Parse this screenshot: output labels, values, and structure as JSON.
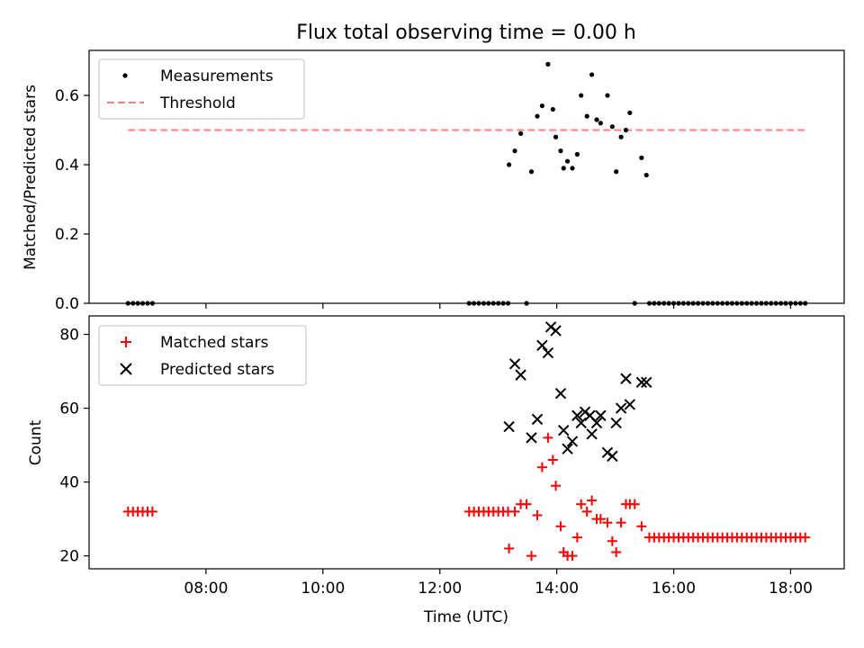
{
  "chart_data": [
    {
      "type": "scatter",
      "title": "Flux total observing time = 0.00 h",
      "xlabel": "",
      "ylabel": "Matched/Predicted stars",
      "x_unit": "hours UTC",
      "xlim": [
        "06:00",
        "18:55"
      ],
      "ylim": [
        0,
        0.73
      ],
      "yticks": [
        0.0,
        0.2,
        0.4,
        0.6
      ],
      "ytick_labels": [
        "0.0",
        "0.2",
        "0.4",
        "0.6"
      ],
      "xticks": [
        "08:00",
        "10:00",
        "12:00",
        "14:00",
        "16:00",
        "18:00"
      ],
      "show_xtick_labels": false,
      "grid": false,
      "legend": {
        "placement": "top-left",
        "entries": [
          {
            "label": "Measurements",
            "marker": "dot",
            "color": "#000000"
          },
          {
            "label": "Threshold",
            "marker": "dashed-line",
            "color": "#ff7f7f"
          }
        ]
      },
      "threshold": {
        "name": "Threshold",
        "value": 0.5,
        "x_start": "06:40",
        "x_end": "18:15",
        "color": "#ff7f7f"
      },
      "series": [
        {
          "name": "Measurements",
          "color": "#000000",
          "points": [
            [
              "06:40",
              0
            ],
            [
              "06:45",
              0
            ],
            [
              "06:50",
              0
            ],
            [
              "06:55",
              0
            ],
            [
              "07:00",
              0
            ],
            [
              "07:05",
              0
            ],
            [
              "12:30",
              0
            ],
            [
              "12:35",
              0
            ],
            [
              "12:40",
              0
            ],
            [
              "12:45",
              0
            ],
            [
              "12:50",
              0
            ],
            [
              "12:55",
              0
            ],
            [
              "13:00",
              0
            ],
            [
              "13:05",
              0
            ],
            [
              "13:10",
              0
            ],
            [
              "13:11",
              0.4
            ],
            [
              "13:17",
              0.44
            ],
            [
              "13:23",
              0.49
            ],
            [
              "13:29",
              0
            ],
            [
              "13:34",
              0.38
            ],
            [
              "13:40",
              0.54
            ],
            [
              "13:45",
              0.57
            ],
            [
              "13:51",
              0.69
            ],
            [
              "13:56",
              0.56
            ],
            [
              "13:59",
              0.48
            ],
            [
              "14:04",
              0.44
            ],
            [
              "14:07",
              0.39
            ],
            [
              "14:11",
              0.41
            ],
            [
              "14:16",
              0.39
            ],
            [
              "14:21",
              0.43
            ],
            [
              "14:25",
              0.6
            ],
            [
              "14:31",
              0.54
            ],
            [
              "14:36",
              0.66
            ],
            [
              "14:41",
              0.53
            ],
            [
              "14:45",
              0.52
            ],
            [
              "14:52",
              0.6
            ],
            [
              "14:57",
              0.51
            ],
            [
              "15:01",
              0.38
            ],
            [
              "15:06",
              0.48
            ],
            [
              "15:11",
              0.5
            ],
            [
              "15:15",
              0.55
            ],
            [
              "15:20",
              0
            ],
            [
              "15:27",
              0.42
            ],
            [
              "15:32",
              0.37
            ],
            [
              "15:35",
              0
            ],
            [
              "15:40",
              0
            ],
            [
              "15:45",
              0
            ],
            [
              "15:50",
              0
            ],
            [
              "15:55",
              0
            ],
            [
              "16:00",
              0
            ],
            [
              "16:05",
              0
            ],
            [
              "16:10",
              0
            ],
            [
              "16:15",
              0
            ],
            [
              "16:20",
              0
            ],
            [
              "16:25",
              0
            ],
            [
              "16:30",
              0
            ],
            [
              "16:35",
              0
            ],
            [
              "16:40",
              0
            ],
            [
              "16:45",
              0
            ],
            [
              "16:50",
              0
            ],
            [
              "16:55",
              0
            ],
            [
              "17:00",
              0
            ],
            [
              "17:05",
              0
            ],
            [
              "17:10",
              0
            ],
            [
              "17:15",
              0
            ],
            [
              "17:20",
              0
            ],
            [
              "17:25",
              0
            ],
            [
              "17:30",
              0
            ],
            [
              "17:35",
              0
            ],
            [
              "17:40",
              0
            ],
            [
              "17:45",
              0
            ],
            [
              "17:50",
              0
            ],
            [
              "17:55",
              0
            ],
            [
              "18:00",
              0
            ],
            [
              "18:05",
              0
            ],
            [
              "18:10",
              0
            ],
            [
              "18:15",
              0
            ]
          ]
        }
      ]
    },
    {
      "type": "scatter",
      "title": "",
      "xlabel": "Time (UTC)",
      "ylabel": "Count",
      "x_unit": "hours UTC",
      "xlim": [
        "06:00",
        "18:55"
      ],
      "ylim": [
        16.5,
        85
      ],
      "yticks": [
        20,
        40,
        60,
        80
      ],
      "ytick_labels": [
        "20",
        "40",
        "60",
        "80"
      ],
      "xticks": [
        "08:00",
        "10:00",
        "12:00",
        "14:00",
        "16:00",
        "18:00"
      ],
      "xtick_labels": [
        "08:00",
        "10:00",
        "12:00",
        "14:00",
        "16:00",
        "18:00"
      ],
      "grid": false,
      "legend": {
        "placement": "top-left",
        "entries": [
          {
            "label": "Matched stars",
            "marker": "plus",
            "color": "#ff0000"
          },
          {
            "label": "Predicted stars",
            "marker": "x",
            "color": "#000000"
          }
        ]
      },
      "series": [
        {
          "name": "Matched stars",
          "color": "#ff0000",
          "marker": "plus",
          "points": [
            [
              "06:40",
              32
            ],
            [
              "06:45",
              32
            ],
            [
              "06:50",
              32
            ],
            [
              "06:55",
              32
            ],
            [
              "07:00",
              32
            ],
            [
              "07:05",
              32
            ],
            [
              "12:30",
              32
            ],
            [
              "12:35",
              32
            ],
            [
              "12:40",
              32
            ],
            [
              "12:45",
              32
            ],
            [
              "12:50",
              32
            ],
            [
              "12:55",
              32
            ],
            [
              "13:00",
              32
            ],
            [
              "13:05",
              32
            ],
            [
              "13:10",
              32
            ],
            [
              "13:11",
              22
            ],
            [
              "13:17",
              32
            ],
            [
              "13:23",
              34
            ],
            [
              "13:29",
              34
            ],
            [
              "13:34",
              20
            ],
            [
              "13:40",
              31
            ],
            [
              "13:45",
              44
            ],
            [
              "13:51",
              52
            ],
            [
              "13:56",
              46
            ],
            [
              "13:59",
              39
            ],
            [
              "14:04",
              28
            ],
            [
              "14:07",
              21
            ],
            [
              "14:11",
              20
            ],
            [
              "14:16",
              20
            ],
            [
              "14:21",
              25
            ],
            [
              "14:25",
              34
            ],
            [
              "14:31",
              32
            ],
            [
              "14:36",
              35
            ],
            [
              "14:41",
              30
            ],
            [
              "14:45",
              30
            ],
            [
              "14:52",
              29
            ],
            [
              "14:57",
              24
            ],
            [
              "15:01",
              21
            ],
            [
              "15:06",
              29
            ],
            [
              "15:11",
              34
            ],
            [
              "15:15",
              34
            ],
            [
              "15:20",
              34
            ],
            [
              "15:27",
              28
            ],
            [
              "15:35",
              25
            ],
            [
              "15:40",
              25
            ],
            [
              "15:45",
              25
            ],
            [
              "15:50",
              25
            ],
            [
              "15:55",
              25
            ],
            [
              "16:00",
              25
            ],
            [
              "16:05",
              25
            ],
            [
              "16:10",
              25
            ],
            [
              "16:15",
              25
            ],
            [
              "16:20",
              25
            ],
            [
              "16:25",
              25
            ],
            [
              "16:30",
              25
            ],
            [
              "16:35",
              25
            ],
            [
              "16:40",
              25
            ],
            [
              "16:45",
              25
            ],
            [
              "16:50",
              25
            ],
            [
              "16:55",
              25
            ],
            [
              "17:00",
              25
            ],
            [
              "17:05",
              25
            ],
            [
              "17:10",
              25
            ],
            [
              "17:15",
              25
            ],
            [
              "17:20",
              25
            ],
            [
              "17:25",
              25
            ],
            [
              "17:30",
              25
            ],
            [
              "17:35",
              25
            ],
            [
              "17:40",
              25
            ],
            [
              "17:45",
              25
            ],
            [
              "17:50",
              25
            ],
            [
              "17:55",
              25
            ],
            [
              "18:00",
              25
            ],
            [
              "18:05",
              25
            ],
            [
              "18:10",
              25
            ],
            [
              "18:15",
              25
            ]
          ]
        },
        {
          "name": "Predicted stars",
          "color": "#000000",
          "marker": "x",
          "points": [
            [
              "13:11",
              55
            ],
            [
              "13:17",
              72
            ],
            [
              "13:23",
              69
            ],
            [
              "13:34",
              52
            ],
            [
              "13:40",
              57
            ],
            [
              "13:45",
              77
            ],
            [
              "13:51",
              75
            ],
            [
              "13:54",
              82
            ],
            [
              "13:59",
              81
            ],
            [
              "14:04",
              64
            ],
            [
              "14:07",
              54
            ],
            [
              "14:11",
              49
            ],
            [
              "14:16",
              51
            ],
            [
              "14:21",
              58
            ],
            [
              "14:25",
              56
            ],
            [
              "14:29",
              59
            ],
            [
              "14:34",
              58
            ],
            [
              "14:36",
              53
            ],
            [
              "14:41",
              56
            ],
            [
              "14:45",
              58
            ],
            [
              "14:52",
              48
            ],
            [
              "14:57",
              47
            ],
            [
              "15:01",
              56
            ],
            [
              "15:06",
              60
            ],
            [
              "15:11",
              68
            ],
            [
              "15:15",
              61
            ],
            [
              "15:27",
              67
            ],
            [
              "15:32",
              67
            ]
          ]
        }
      ]
    }
  ]
}
